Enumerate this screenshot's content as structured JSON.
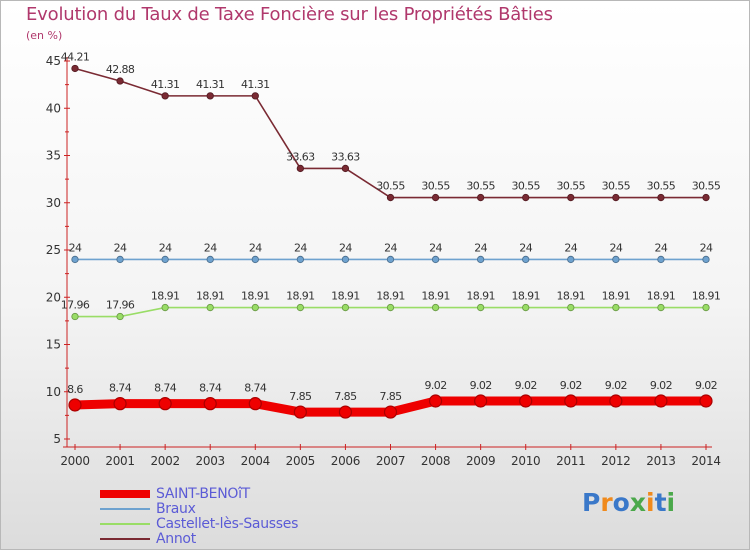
{
  "header": {
    "title": "Evolution du Taux de Taxe Foncière sur les Propriétés Bâties",
    "subtitle": "(en %)"
  },
  "logo": {
    "text": "Proxiti",
    "colors": [
      "#3a78c9",
      "#f08a1c",
      "#3a78c9",
      "#4aa84a",
      "#f08a1c",
      "#3a78c9",
      "#4aa84a"
    ]
  },
  "chart_data": {
    "type": "line",
    "title": "Evolution du Taux de Taxe Foncière sur les Propriétés Bâties",
    "ylabel": "(en %)",
    "xlabel": "",
    "x": [
      "2000",
      "2001",
      "2002",
      "2003",
      "2004",
      "2005",
      "2006",
      "2007",
      "2008",
      "2009",
      "2010",
      "2011",
      "2012",
      "2013",
      "2014"
    ],
    "ylim": [
      5,
      45
    ],
    "yticks": [
      5,
      10,
      15,
      20,
      25,
      30,
      35,
      40,
      45
    ],
    "grid": false,
    "legend_position": "bottom-left",
    "series": [
      {
        "name": "SAINT-BENOîT",
        "color": "#ee0000",
        "legend_color": "#5b5bd6",
        "thick": true,
        "values": [
          8.6,
          8.74,
          8.74,
          8.74,
          8.74,
          7.85,
          7.85,
          7.85,
          9.02,
          9.02,
          9.02,
          9.02,
          9.02,
          9.02,
          9.02
        ],
        "labels": [
          "8.6",
          "8.74",
          "8.74",
          "8.74",
          "8.74",
          "7.85",
          "7.85",
          "7.85",
          "9.02",
          "9.02",
          "9.02",
          "9.02",
          "9.02",
          "9.02",
          "9.02"
        ]
      },
      {
        "name": "Braux",
        "color": "#6ea2cf",
        "legend_color": "#5b5bd6",
        "thick": false,
        "values": [
          24,
          24,
          24,
          24,
          24,
          24,
          24,
          24,
          24,
          24,
          24,
          24,
          24,
          24,
          24
        ],
        "labels": [
          "24",
          "24",
          "24",
          "24",
          "24",
          "24",
          "24",
          "24",
          "24",
          "24",
          "24",
          "24",
          "24",
          "24",
          "24"
        ]
      },
      {
        "name": "Castellet-lès-Sausses",
        "color": "#99dd66",
        "legend_color": "#5b5bd6",
        "thick": false,
        "values": [
          17.96,
          17.96,
          18.91,
          18.91,
          18.91,
          18.91,
          18.91,
          18.91,
          18.91,
          18.91,
          18.91,
          18.91,
          18.91,
          18.91,
          18.91
        ],
        "labels": [
          "17.96",
          "17.96",
          "18.91",
          "18.91",
          "18.91",
          "18.91",
          "18.91",
          "18.91",
          "18.91",
          "18.91",
          "18.91",
          "18.91",
          "18.91",
          "18.91",
          "18.91"
        ]
      },
      {
        "name": "Annot",
        "color": "#7a2a33",
        "legend_color": "#5b5bd6",
        "thick": false,
        "values": [
          44.21,
          42.88,
          41.31,
          41.31,
          41.31,
          33.63,
          33.63,
          30.55,
          30.55,
          30.55,
          30.55,
          30.55,
          30.55,
          30.55,
          30.55
        ],
        "labels": [
          "44.21",
          "42.88",
          "41.31",
          "41.31",
          "41.31",
          "33.63",
          "33.63",
          "30.55",
          "30.55",
          "30.55",
          "30.55",
          "30.55",
          "30.55",
          "30.55",
          "30.55"
        ]
      }
    ]
  }
}
